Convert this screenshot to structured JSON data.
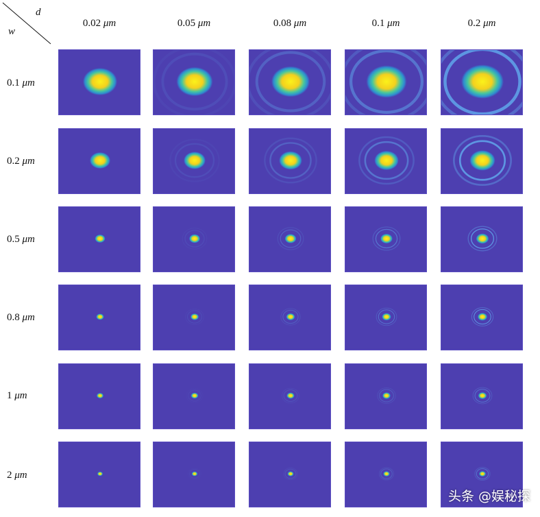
{
  "corner": {
    "col_symbol": "d",
    "row_symbol": "w"
  },
  "columns": [
    {
      "value": "0.02",
      "unit": "μm"
    },
    {
      "value": "0.05",
      "unit": "μm"
    },
    {
      "value": "0.08",
      "unit": "μm"
    },
    {
      "value": "0.1",
      "unit": "μm"
    },
    {
      "value": "0.2",
      "unit": "μm"
    }
  ],
  "rows": [
    {
      "value": "0.1",
      "unit": "μm"
    },
    {
      "value": "0.2",
      "unit": "μm"
    },
    {
      "value": "0.5",
      "unit": "μm"
    },
    {
      "value": "0.8",
      "unit": "μm"
    },
    {
      "value": "1",
      "unit": "μm"
    },
    {
      "value": "2",
      "unit": "μm"
    }
  ],
  "colors": {
    "background": "#4d3fb0",
    "core": "#f7e11a",
    "mid": "#2cc2b5"
  },
  "watermark": "头条 @娱秘探"
}
